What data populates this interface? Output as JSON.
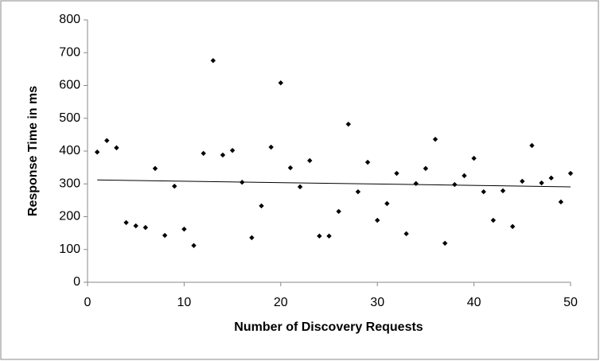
{
  "chart_data": {
    "type": "scatter",
    "x_label": "Number of Discovery Requests",
    "y_label": "Response Time in ms",
    "x": [
      1,
      2,
      3,
      4,
      5,
      6,
      7,
      8,
      9,
      10,
      11,
      12,
      13,
      14,
      15,
      16,
      17,
      18,
      19,
      20,
      21,
      22,
      23,
      24,
      25,
      26,
      27,
      28,
      29,
      30,
      31,
      32,
      33,
      34,
      35,
      36,
      37,
      38,
      39,
      40,
      41,
      42,
      43,
      44,
      45,
      46,
      47,
      48,
      49,
      50
    ],
    "values": [
      397,
      432,
      410,
      182,
      172,
      167,
      347,
      143,
      293,
      162,
      112,
      393,
      676,
      388,
      402,
      305,
      136,
      233,
      412,
      608,
      349,
      291,
      371,
      141,
      141,
      216,
      482,
      276,
      366,
      189,
      240,
      332,
      148,
      301,
      347,
      436,
      119,
      298,
      325,
      378,
      276,
      189,
      279,
      170,
      308,
      417,
      303,
      318,
      245,
      332
    ],
    "color": "#000000",
    "trendline": {
      "x": [
        1,
        50
      ],
      "values": [
        312,
        291
      ],
      "color": "#000000"
    },
    "xlim": [
      0,
      50
    ],
    "xticks": [
      0,
      10,
      20,
      30,
      40,
      50
    ],
    "ylim": [
      0,
      800
    ],
    "yticks": [
      0,
      100,
      200,
      300,
      400,
      500,
      600,
      700,
      800
    ],
    "grid": false
  }
}
